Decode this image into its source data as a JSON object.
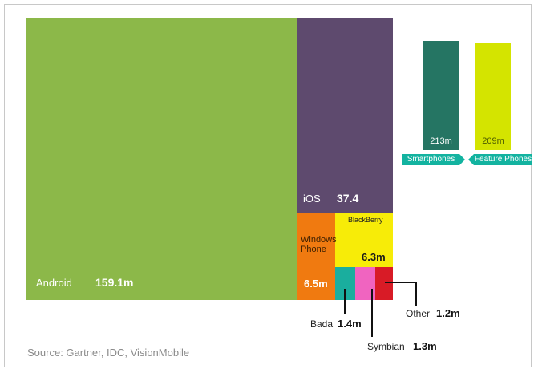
{
  "chart_data": [
    {
      "type": "treemap",
      "unit": "m",
      "segments": [
        {
          "name": "Android",
          "label": "Android",
          "value_label": "159.1m",
          "value": 159.1,
          "color": "#8cb849"
        },
        {
          "name": "iOS",
          "label": "iOS",
          "value_label": "37.4",
          "value": 37.4,
          "color": "#5e4a6e"
        },
        {
          "name": "Windows Phone",
          "label": "Windows\nPhone",
          "value_label": "6.5m",
          "value": 6.5,
          "color": "#f07a10"
        },
        {
          "name": "BlackBerry",
          "label": "BlackBerry",
          "value_label": "6.3m",
          "value": 6.3,
          "color": "#f7ec08"
        },
        {
          "name": "Bada",
          "label": "Bada",
          "value_label": "1.4m",
          "value": 1.4,
          "color": "#1aae9e"
        },
        {
          "name": "Symbian",
          "label": "Symbian",
          "value_label": "1.3m",
          "value": 1.3,
          "color": "#f064c0"
        },
        {
          "name": "Other",
          "label": "Other",
          "value_label": "1.2m",
          "value": 1.2,
          "color": "#d81b26"
        }
      ]
    },
    {
      "type": "bar",
      "categories": [
        "Smartphones",
        "Feature Phones"
      ],
      "values": [
        213,
        209
      ],
      "value_labels": [
        "213m",
        "209m"
      ],
      "colors": [
        "#257563",
        "#d4e400"
      ]
    }
  ],
  "source": "Source: Gartner, IDC, VisionMobile"
}
